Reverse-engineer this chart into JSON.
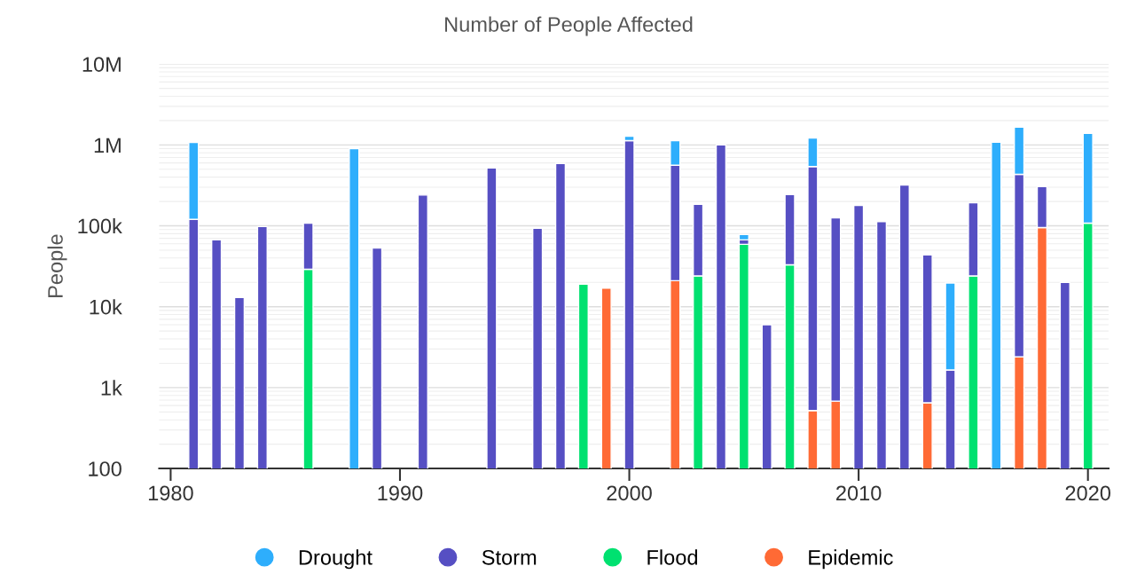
{
  "chart_data": {
    "type": "bar",
    "title": "Number of People Affected",
    "ylabel": "People",
    "stacked": true,
    "log": "y",
    "grid": "y",
    "legend": "bottom",
    "x": [
      1981,
      1982,
      1983,
      1984,
      1986,
      1988,
      1989,
      1991,
      1994,
      1996,
      1997,
      1998,
      1999,
      2000,
      2002,
      2003,
      2004,
      2005,
      2006,
      2007,
      2008,
      2009,
      2010,
      2011,
      2012,
      2013,
      2014,
      2015,
      2016,
      2017,
      2018,
      2019,
      2020
    ],
    "series": [
      {
        "name": "Epidemic",
        "color": "#ff6a35",
        "values": [
          null,
          null,
          null,
          null,
          null,
          null,
          null,
          null,
          null,
          null,
          null,
          null,
          17000,
          null,
          21000,
          null,
          null,
          null,
          null,
          null,
          520,
          680,
          null,
          null,
          null,
          650,
          null,
          null,
          null,
          2400,
          95000,
          null,
          null
        ]
      },
      {
        "name": "Flood",
        "color": "#00e170",
        "values": [
          null,
          null,
          null,
          null,
          29000,
          null,
          null,
          null,
          null,
          null,
          null,
          19000,
          null,
          null,
          null,
          24000,
          null,
          59000,
          null,
          33000,
          null,
          null,
          null,
          null,
          null,
          null,
          null,
          24000,
          null,
          null,
          null,
          null,
          108000
        ]
      },
      {
        "name": "Storm",
        "color": "#564fc3",
        "values": [
          120000,
          67000,
          13000,
          98000,
          79000,
          null,
          53000,
          240000,
          520000,
          93000,
          590000,
          null,
          null,
          1130000,
          540000,
          160000,
          1000000,
          8000,
          6000,
          210000,
          540000,
          125000,
          179000,
          113000,
          320000,
          43000,
          1650,
          169000,
          null,
          430000,
          210000,
          20000,
          null
        ]
      },
      {
        "name": "Drought",
        "color": "#2eaefc",
        "values": [
          950000,
          null,
          null,
          null,
          null,
          900000,
          null,
          null,
          null,
          null,
          null,
          null,
          null,
          150000,
          570000,
          null,
          null,
          11000,
          null,
          null,
          680000,
          null,
          null,
          null,
          null,
          null,
          18000,
          null,
          1080000,
          1230000,
          null,
          null,
          1280000
        ]
      }
    ],
    "xlim": [
      1979.5,
      2020.9
    ],
    "xticks": [
      1980,
      1990,
      2000,
      2010,
      2020
    ],
    "ylim": [
      100,
      10000000
    ],
    "yticks": [
      {
        "value": 100,
        "label": "100"
      },
      {
        "value": 1000,
        "label": "1k"
      },
      {
        "value": 10000,
        "label": "10k"
      },
      {
        "value": 100000,
        "label": "100k"
      },
      {
        "value": 1000000,
        "label": "1M"
      },
      {
        "value": 10000000,
        "label": "10M"
      }
    ]
  }
}
